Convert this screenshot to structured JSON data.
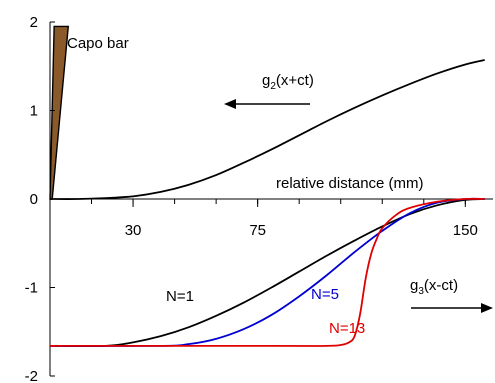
{
  "chart_data": {
    "type": "line",
    "xlabel": "relative distance (mm)",
    "ylabel": "",
    "xlim": [
      0,
      160
    ],
    "ylim": [
      -2,
      2
    ],
    "x_ticks": [
      30,
      75,
      150
    ],
    "y_ticks": [
      2,
      1,
      0,
      -1,
      -2
    ],
    "grid": false,
    "legend": "none",
    "annotations": {
      "capo": "Capo bar",
      "g2_base": "g",
      "g2_sub": "2",
      "g2_rest": "(x+ct)",
      "g3_base": "g",
      "g3_sub": "3",
      "g3_rest": "(x-ct)"
    },
    "series": [
      {
        "name": "",
        "color": "#000000",
        "x": [
          0,
          10,
          20,
          30,
          40,
          50,
          60,
          70,
          80,
          90,
          100,
          110,
          120,
          130,
          140,
          150,
          157
        ],
        "y": [
          0,
          0,
          0.01,
          0.03,
          0.08,
          0.16,
          0.27,
          0.41,
          0.56,
          0.72,
          0.88,
          1.03,
          1.17,
          1.3,
          1.42,
          1.52,
          1.57
        ]
      },
      {
        "name": "N=1",
        "color": "#000000",
        "x": [
          0,
          20,
          30,
          40,
          50,
          60,
          70,
          80,
          90,
          100,
          110,
          120,
          130,
          140,
          150,
          157
        ],
        "y": [
          -1.66,
          -1.66,
          -1.62,
          -1.55,
          -1.45,
          -1.32,
          -1.17,
          -1.0,
          -0.82,
          -0.64,
          -0.47,
          -0.31,
          -0.17,
          -0.07,
          -0.01,
          0
        ]
      },
      {
        "name": "N=5",
        "color": "#0000d0",
        "x": [
          0,
          40,
          50,
          60,
          70,
          80,
          90,
          100,
          110,
          120,
          130,
          140,
          150,
          157
        ],
        "y": [
          -1.66,
          -1.66,
          -1.64,
          -1.58,
          -1.47,
          -1.31,
          -1.1,
          -0.86,
          -0.6,
          -0.36,
          -0.16,
          -0.04,
          0,
          0
        ]
      },
      {
        "name": "N=13",
        "color": "#e00000",
        "x": [
          0,
          80,
          100,
          105,
          108,
          110,
          112,
          114,
          116,
          118,
          120,
          125,
          130,
          140,
          150,
          157
        ],
        "y": [
          -1.66,
          -1.66,
          -1.66,
          -1.65,
          -1.62,
          -1.55,
          -1.3,
          -0.9,
          -0.62,
          -0.45,
          -0.33,
          -0.18,
          -0.1,
          -0.03,
          0,
          0
        ]
      }
    ]
  }
}
